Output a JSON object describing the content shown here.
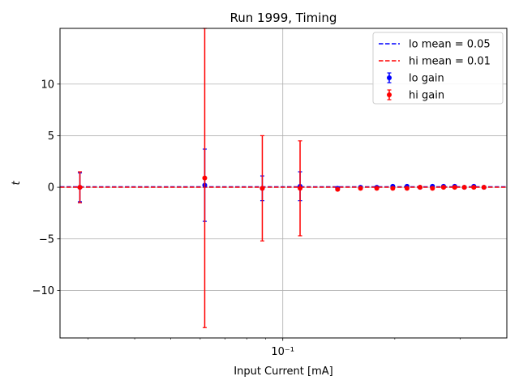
{
  "chart_data": {
    "type": "scatter",
    "title": "Run 1999, Timing",
    "xlabel": "Input Current [mA]",
    "ylabel": "t",
    "xscale": "log",
    "xlim": [
      0.0252,
      0.4
    ],
    "ylim": [
      -14.6,
      15.4
    ],
    "yticks": [
      -10,
      -5,
      0,
      5,
      10
    ],
    "ytick_labels": [
      "−10",
      "−5",
      "0",
      "5",
      "10"
    ],
    "xticks": [
      0.1
    ],
    "xtick_labels": [
      "10⁻¹"
    ],
    "grid": true,
    "legend_position": "top-right",
    "series": [
      {
        "name": "lo gain",
        "color": "#0000ff",
        "marker": "circle-with-errorbars",
        "x": [
          0.0285,
          0.0617,
          0.0881,
          0.1113,
          0.1404,
          0.1618,
          0.1789,
          0.1975,
          0.2157,
          0.2338,
          0.2525,
          0.2704,
          0.2897,
          0.3075,
          0.3261,
          0.3472
        ],
        "y": [
          0.0,
          0.2,
          -0.1,
          0.1,
          -0.1,
          0.0,
          0.0,
          0.1,
          0.1,
          0.0,
          0.1,
          0.1,
          0.1,
          0.0,
          0.1,
          0.0
        ],
        "yerr": [
          1.4,
          3.5,
          1.2,
          1.4,
          0.1,
          0.1,
          0.1,
          0.1,
          0.1,
          0.1,
          0.1,
          0.1,
          0.1,
          0.1,
          0.1,
          0.1
        ]
      },
      {
        "name": "hi gain",
        "color": "#ff0000",
        "marker": "circle-with-errorbars",
        "x": [
          0.0285,
          0.0617,
          0.0881,
          0.1113,
          0.1404,
          0.1618,
          0.1789,
          0.1975,
          0.2157,
          0.2338,
          0.2525,
          0.2704,
          0.2897,
          0.3075,
          0.3261,
          0.3472
        ],
        "y": [
          0.0,
          0.9,
          -0.1,
          -0.1,
          -0.2,
          -0.1,
          -0.1,
          -0.1,
          -0.1,
          0.0,
          -0.1,
          0.0,
          0.0,
          0.0,
          0.0,
          0.0
        ],
        "yerr": [
          1.5,
          14.5,
          5.1,
          4.6,
          0.1,
          0.1,
          0.1,
          0.1,
          0.1,
          0.1,
          0.1,
          0.1,
          0.1,
          0.1,
          0.1,
          0.1
        ]
      }
    ],
    "reference_lines": [
      {
        "label": "lo mean = 0.05",
        "y": 0.05,
        "color": "#0000ff",
        "style": "dashed"
      },
      {
        "label": "hi mean = 0.01",
        "y": 0.01,
        "color": "#ff0000",
        "style": "dashed"
      }
    ]
  }
}
